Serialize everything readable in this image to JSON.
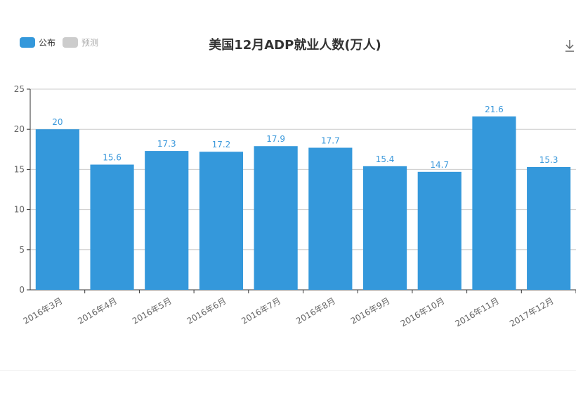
{
  "legend": {
    "items": [
      {
        "label": "公布",
        "color": "#3498db"
      },
      {
        "label": "预测",
        "color": "#cccccc"
      }
    ]
  },
  "title": "美国12月ADP就业人数(万人)",
  "toolbar": {
    "download_icon": "download-icon"
  },
  "colors": {
    "bar": "#3498db",
    "data_label": "#3a98db",
    "grid": "#cccccc",
    "axis": "#333333"
  },
  "chart_data": {
    "type": "bar",
    "title": "美国12月ADP就业人数(万人)",
    "categories": [
      "2016年3月",
      "2016年4月",
      "2016年5月",
      "2016年6月",
      "2016年7月",
      "2016年8月",
      "2016年9月",
      "2016年10月",
      "2016年11月",
      "2017年12月"
    ],
    "series": [
      {
        "name": "公布",
        "values": [
          20,
          15.6,
          17.3,
          17.2,
          17.9,
          17.7,
          15.4,
          14.7,
          21.6,
          15.3
        ]
      }
    ],
    "ylim": [
      0,
      25
    ],
    "yticks": [
      0,
      5,
      10,
      15,
      20,
      25
    ],
    "xlabel": "",
    "ylabel": "",
    "grid": true,
    "legend_position": "top-left"
  }
}
